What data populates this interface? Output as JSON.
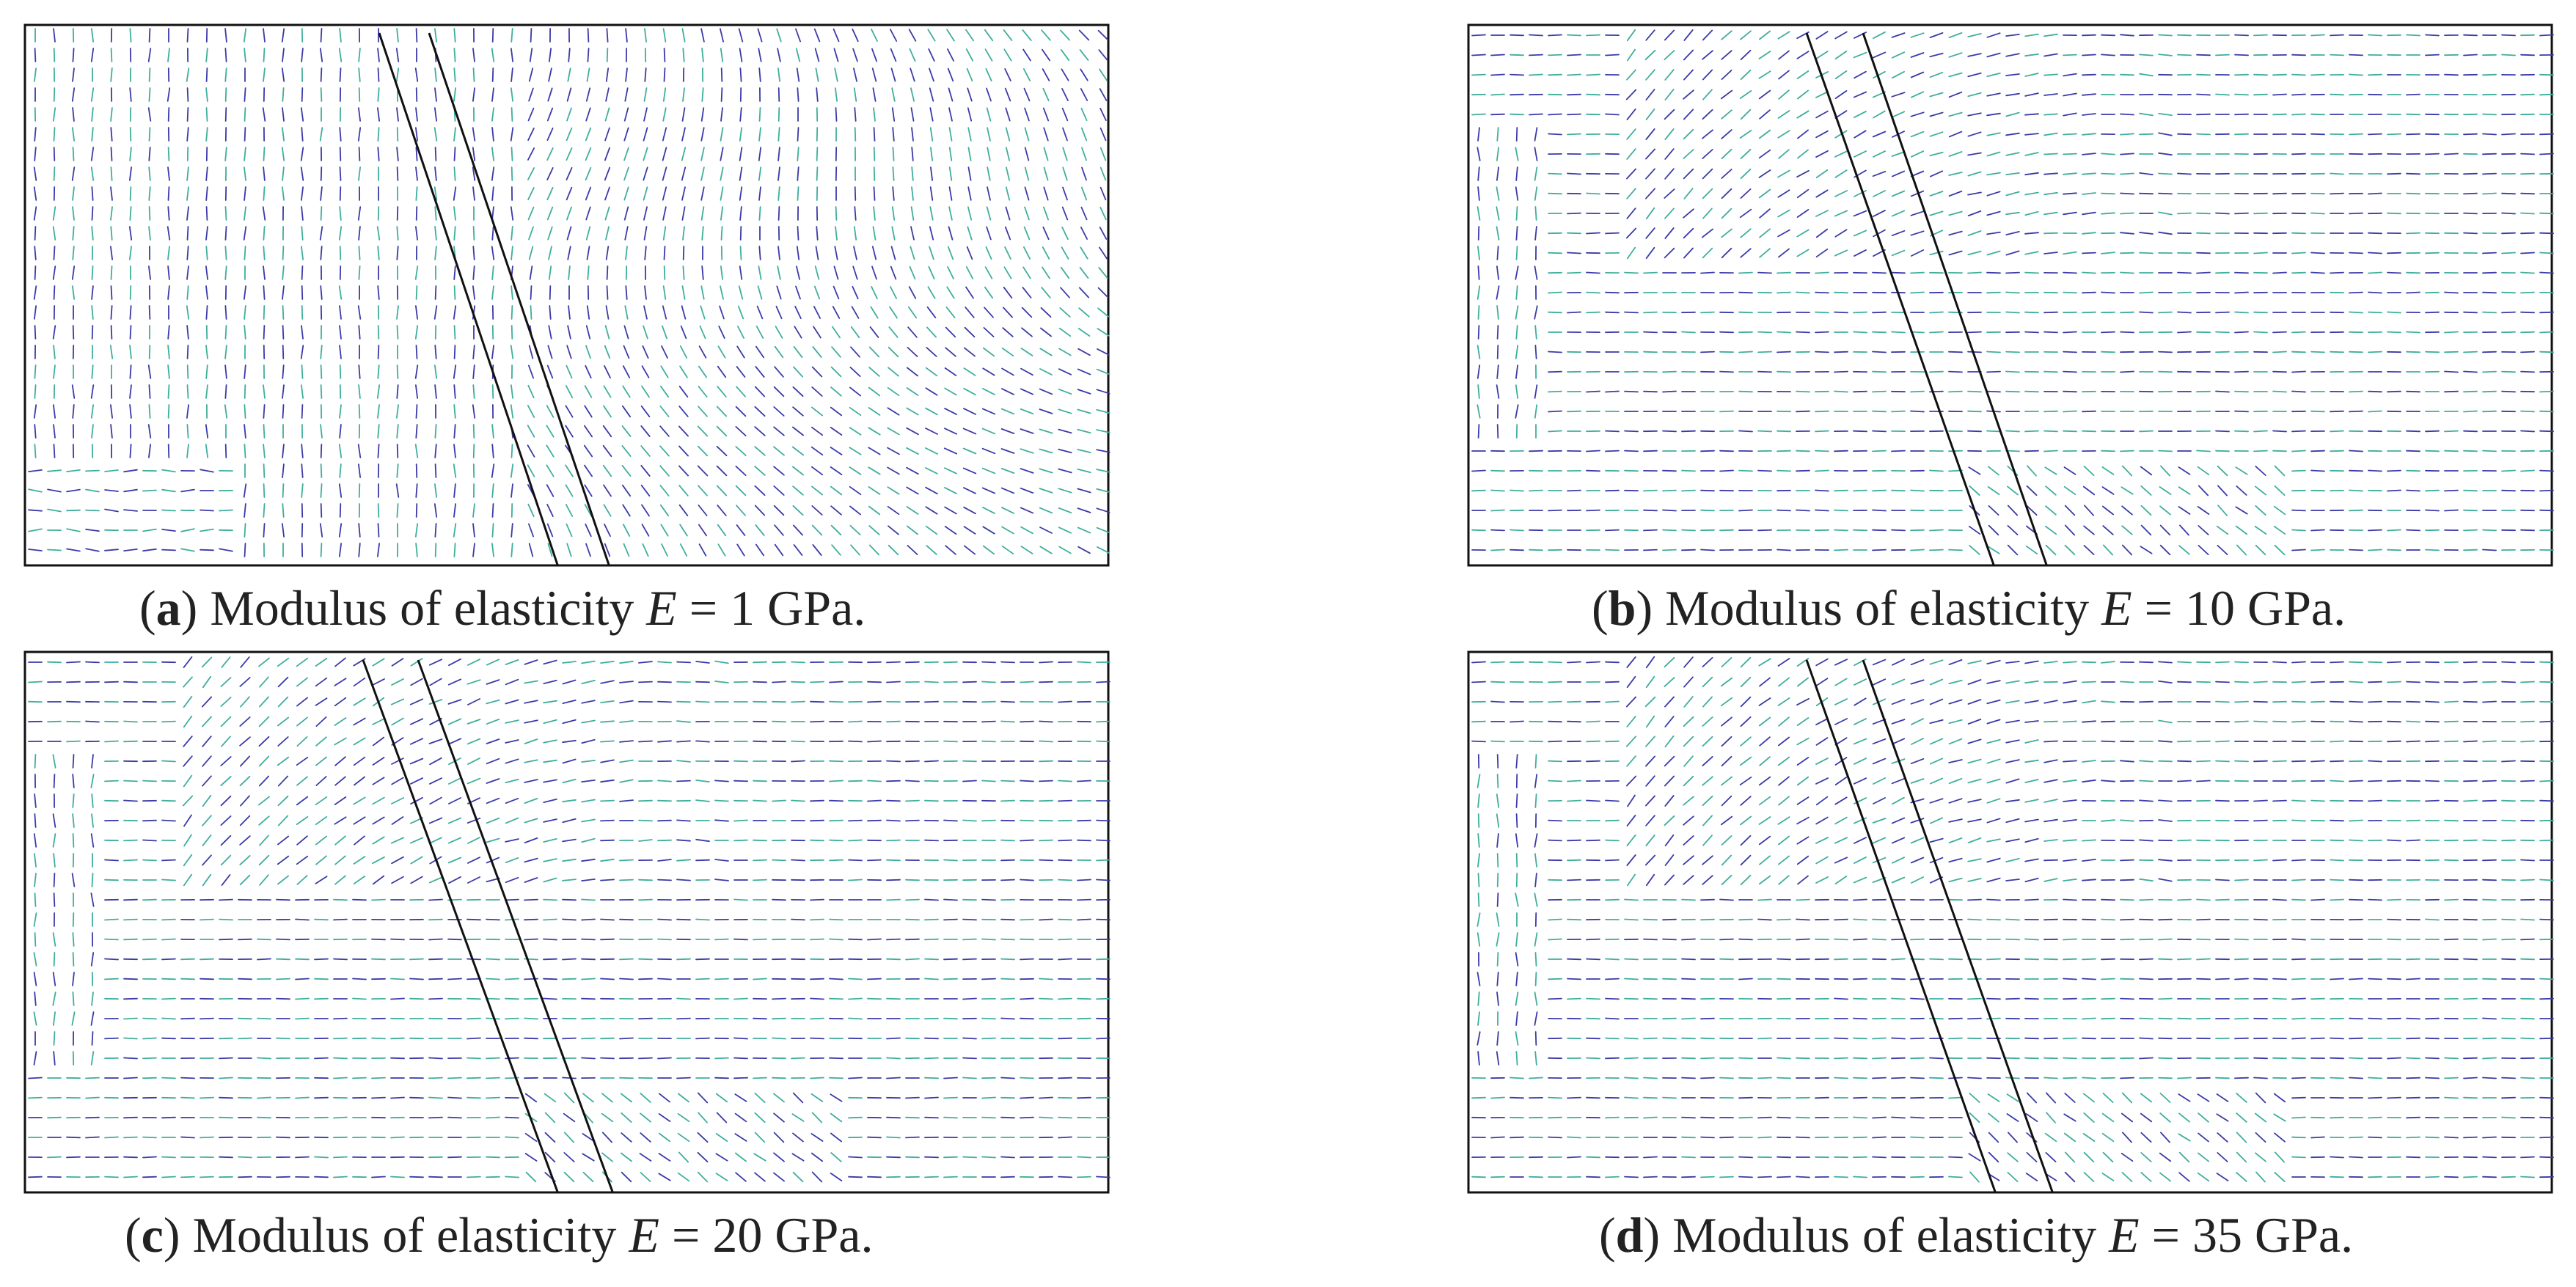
{
  "colors": {
    "vector_a": "#3a3aa8",
    "vector_b": "#3fae9c",
    "frame": "#111111",
    "text": "#222222"
  },
  "panels": [
    {
      "id": "a",
      "caption": {
        "open": "(",
        "letter": "a",
        "close": ")",
        "text": " Modulus of elasticity ",
        "symbol": "E",
        "rest": " = 1 GPa."
      }
    },
    {
      "id": "b",
      "caption": {
        "open": "(",
        "letter": "b",
        "close": ")",
        "text": " Modulus of elasticity ",
        "symbol": "E",
        "rest": " = 10 GPa."
      }
    },
    {
      "id": "c",
      "caption": {
        "open": "(",
        "letter": "c",
        "close": ")",
        "text": " Modulus of elasticity ",
        "symbol": "E",
        "rest": " = 20 GPa."
      }
    },
    {
      "id": "d",
      "caption": {
        "open": "(",
        "letter": "d",
        "close": ")",
        "text": " Modulus of elasticity ",
        "symbol": "E",
        "rest": " = 35 GPa."
      }
    }
  ]
}
